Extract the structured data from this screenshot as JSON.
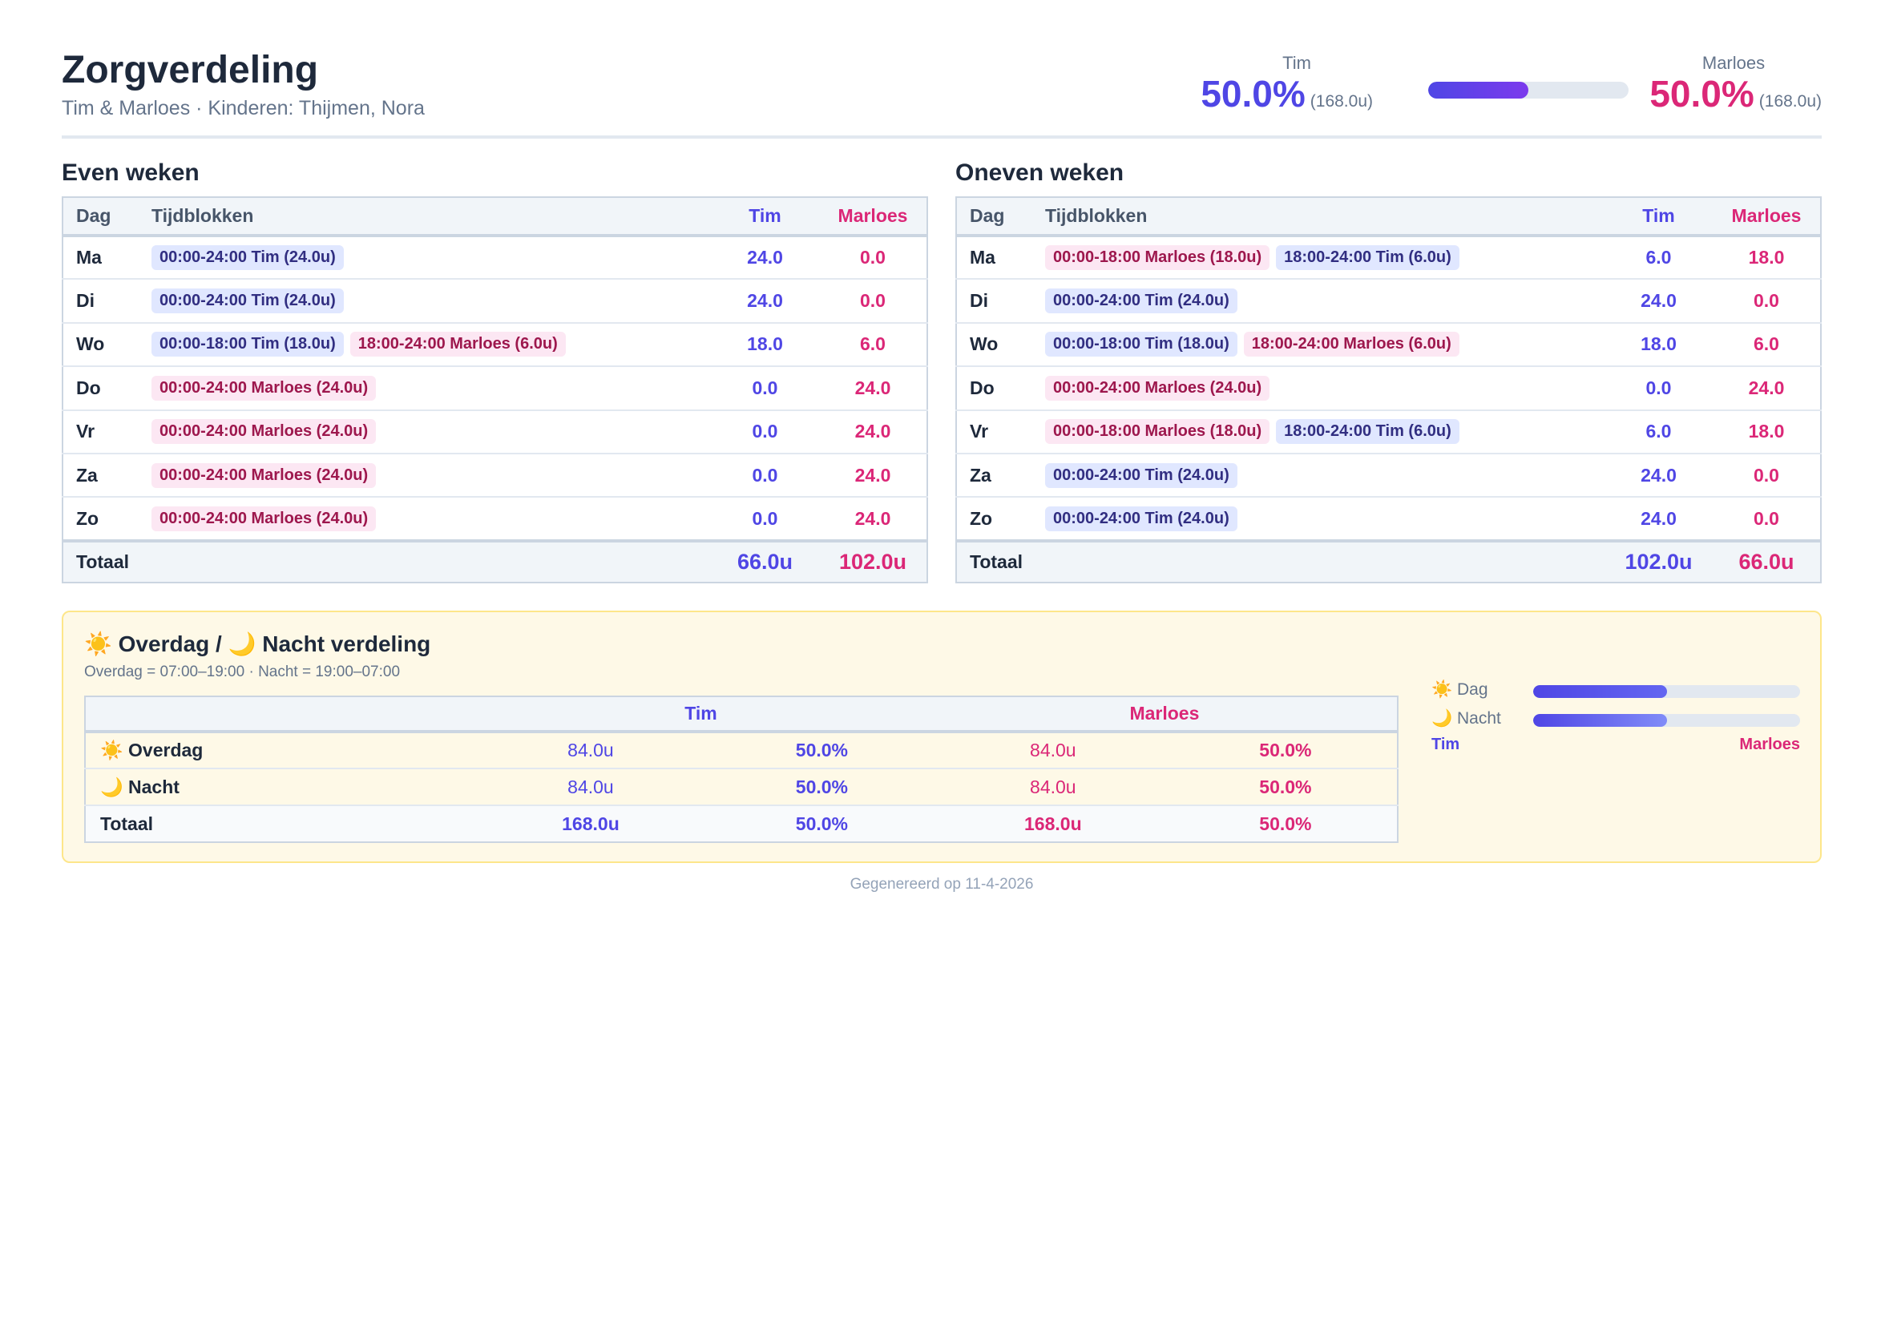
{
  "header": {
    "title": "Zorgverdeling",
    "subtitle": "Tim & Marloes · Kinderen: Thijmen, Nora"
  },
  "summary": {
    "tim": {
      "name": "Tim",
      "percent": "50.0%",
      "hours": "(168.0u)"
    },
    "marloes": {
      "name": "Marloes",
      "percent": "50.0%",
      "hours": "(168.0u)"
    },
    "tim_share_bar": 0.5,
    "colors": {
      "tim": "#4f46e5",
      "marloes": "#db2777"
    }
  },
  "even": {
    "title": "Even weken",
    "headers": {
      "day": "Dag",
      "blocks": "Tijdblokken",
      "tim": "Tim",
      "marloes": "Marloes"
    },
    "rows": [
      {
        "day": "Ma",
        "blocks": [
          {
            "who": "tim",
            "text": "00:00-24:00 Tim (24.0u)"
          }
        ],
        "tim": "24.0",
        "marloes": "0.0"
      },
      {
        "day": "Di",
        "blocks": [
          {
            "who": "tim",
            "text": "00:00-24:00 Tim (24.0u)"
          }
        ],
        "tim": "24.0",
        "marloes": "0.0"
      },
      {
        "day": "Wo",
        "blocks": [
          {
            "who": "tim",
            "text": "00:00-18:00 Tim (18.0u)"
          },
          {
            "who": "marloes",
            "text": "18:00-24:00 Marloes (6.0u)"
          }
        ],
        "tim": "18.0",
        "marloes": "6.0"
      },
      {
        "day": "Do",
        "blocks": [
          {
            "who": "marloes",
            "text": "00:00-24:00 Marloes (24.0u)"
          }
        ],
        "tim": "0.0",
        "marloes": "24.0"
      },
      {
        "day": "Vr",
        "blocks": [
          {
            "who": "marloes",
            "text": "00:00-24:00 Marloes (24.0u)"
          }
        ],
        "tim": "0.0",
        "marloes": "24.0"
      },
      {
        "day": "Za",
        "blocks": [
          {
            "who": "marloes",
            "text": "00:00-24:00 Marloes (24.0u)"
          }
        ],
        "tim": "0.0",
        "marloes": "24.0"
      },
      {
        "day": "Zo",
        "blocks": [
          {
            "who": "marloes",
            "text": "00:00-24:00 Marloes (24.0u)"
          }
        ],
        "tim": "0.0",
        "marloes": "24.0"
      }
    ],
    "total": {
      "label": "Totaal",
      "tim": "66.0u",
      "marloes": "102.0u"
    }
  },
  "odd": {
    "title": "Oneven weken",
    "headers": {
      "day": "Dag",
      "blocks": "Tijdblokken",
      "tim": "Tim",
      "marloes": "Marloes"
    },
    "rows": [
      {
        "day": "Ma",
        "blocks": [
          {
            "who": "marloes",
            "text": "00:00-18:00 Marloes (18.0u)"
          },
          {
            "who": "tim",
            "text": "18:00-24:00 Tim (6.0u)"
          }
        ],
        "tim": "6.0",
        "marloes": "18.0"
      },
      {
        "day": "Di",
        "blocks": [
          {
            "who": "tim",
            "text": "00:00-24:00 Tim (24.0u)"
          }
        ],
        "tim": "24.0",
        "marloes": "0.0"
      },
      {
        "day": "Wo",
        "blocks": [
          {
            "who": "tim",
            "text": "00:00-18:00 Tim (18.0u)"
          },
          {
            "who": "marloes",
            "text": "18:00-24:00 Marloes (6.0u)"
          }
        ],
        "tim": "18.0",
        "marloes": "6.0"
      },
      {
        "day": "Do",
        "blocks": [
          {
            "who": "marloes",
            "text": "00:00-24:00 Marloes (24.0u)"
          }
        ],
        "tim": "0.0",
        "marloes": "24.0"
      },
      {
        "day": "Vr",
        "blocks": [
          {
            "who": "marloes",
            "text": "00:00-18:00 Marloes (18.0u)"
          },
          {
            "who": "tim",
            "text": "18:00-24:00 Tim (6.0u)"
          }
        ],
        "tim": "6.0",
        "marloes": "18.0"
      },
      {
        "day": "Za",
        "blocks": [
          {
            "who": "tim",
            "text": "00:00-24:00 Tim (24.0u)"
          }
        ],
        "tim": "24.0",
        "marloes": "0.0"
      },
      {
        "day": "Zo",
        "blocks": [
          {
            "who": "tim",
            "text": "00:00-24:00 Tim (24.0u)"
          }
        ],
        "tim": "24.0",
        "marloes": "0.0"
      }
    ],
    "total": {
      "label": "Totaal",
      "tim": "102.0u",
      "marloes": "66.0u"
    }
  },
  "daynight": {
    "title": "☀️ Overdag / 🌙 Nacht verdeling",
    "subtitle": "Overdag = 07:00–19:00 · Nacht = 19:00–07:00",
    "headers": {
      "tim": "Tim",
      "marloes": "Marloes"
    },
    "rows": [
      {
        "label": "☀️ Overdag",
        "tim_hours": "84.0u",
        "tim_pct": "50.0%",
        "marloes_hours": "84.0u",
        "marloes_pct": "50.0%"
      },
      {
        "label": "🌙 Nacht",
        "tim_hours": "84.0u",
        "tim_pct": "50.0%",
        "marloes_hours": "84.0u",
        "marloes_pct": "50.0%"
      }
    ],
    "total": {
      "label": "Totaal",
      "tim_hours": "168.0u",
      "tim_pct": "50.0%",
      "marloes_hours": "168.0u",
      "marloes_pct": "50.0%"
    },
    "bars": [
      {
        "label": "☀️ Dag",
        "tim_share": 0.5
      },
      {
        "label": "🌙 Nacht",
        "tim_share": 0.5
      }
    ],
    "legend": {
      "left": "Tim",
      "right": "Marloes"
    }
  },
  "footer": {
    "text": "Gegenereerd op 11-4-2026"
  }
}
